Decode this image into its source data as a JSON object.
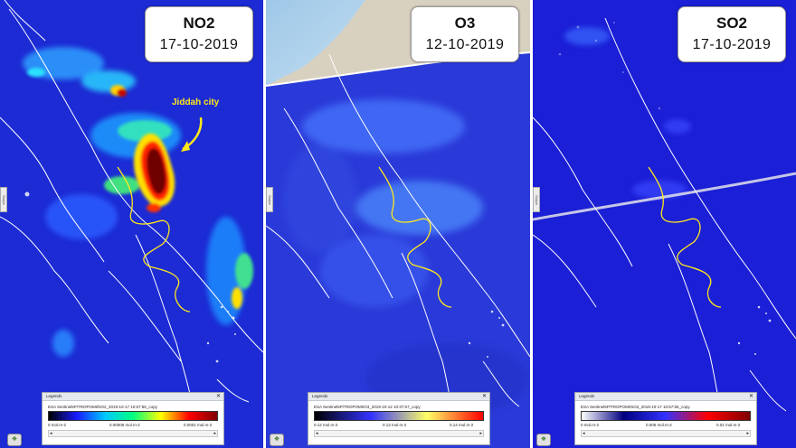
{
  "panels": [
    {
      "gas": "NO2",
      "date": "17-10-2019",
      "annotation": "Jiddah city",
      "legend": {
        "title": "Legends",
        "close_glyph": "✕",
        "layer_name": "ESA Sentinel5P/TROPOMI/NO2_2019-10-17 10:57:55_copy",
        "ticks": [
          "0 mol.m-2",
          "0.00005 mol.m-2",
          "0.0001 mol.m-2"
        ]
      },
      "side_tab_label": "Swipe",
      "logo_icon": "eo-browser-logo-icon"
    },
    {
      "gas": "O3",
      "date": "12-10-2019",
      "annotation": "",
      "legend": {
        "title": "Legends",
        "close_glyph": "✕",
        "layer_name": "ESA Sentinel5P/TROPOMI/O3_2019-10-12 10:37:57_copy",
        "ticks": [
          "0.12 mol.m-2",
          "0.13 mol.m-2",
          "0.14 mol.m-2"
        ]
      },
      "side_tab_label": "Swipe",
      "logo_icon": "eo-browser-logo-icon"
    },
    {
      "gas": "SO2",
      "date": "17-10-2019",
      "annotation": "",
      "legend": {
        "title": "Legends",
        "close_glyph": "✕",
        "layer_name": "ESA Sentinel5P/TROPOMI/SO2_2019-10-17 10:57:55_copy",
        "ticks": [
          "0 mol.m-2",
          "0.005 mol.m-2",
          "0.01 mol.m-2"
        ]
      },
      "side_tab_label": "Swipe",
      "logo_icon": "eo-browser-logo-icon"
    }
  ],
  "colors": {
    "map_background": "#1c2bd4",
    "border_lines": "#ffffff",
    "admin_line": "#ffe81a",
    "hotspot_red": "#8b0000",
    "hotspot_yellow": "#ffe000",
    "annotation": "#ffe81a",
    "ramp_no2": [
      "#000000",
      "#1a1aff",
      "#00c8ff",
      "#00ff80",
      "#ffff00",
      "#ff0000",
      "#800000"
    ],
    "ramp_o3": [
      "#000000",
      "#3333ff",
      "#ffff66",
      "#ff0000"
    ],
    "ramp_so2": [
      "#ffffff",
      "#000080",
      "#3333ff",
      "#ff0000",
      "#800000"
    ]
  }
}
